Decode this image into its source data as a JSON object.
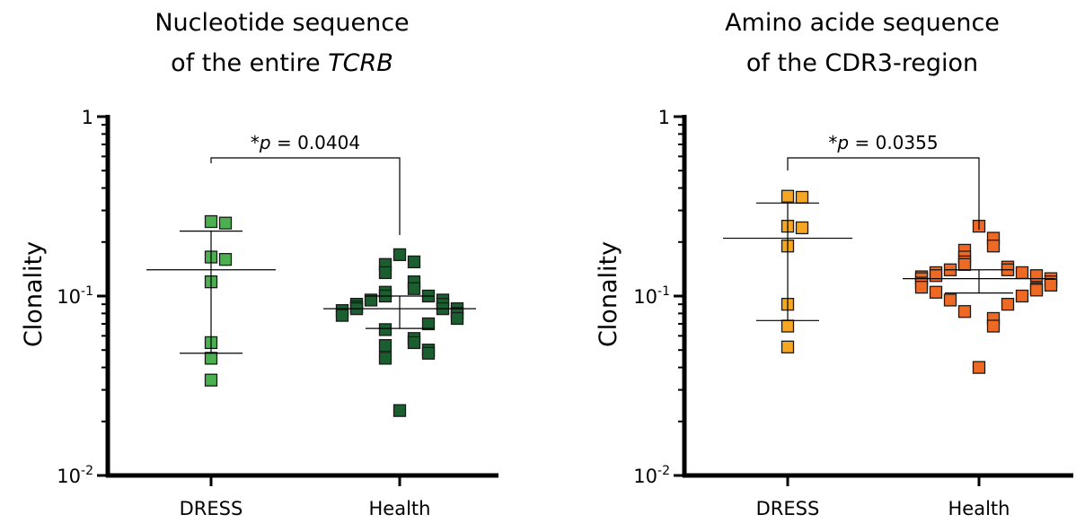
{
  "chart_data": [
    {
      "type": "scatter",
      "title_line1": "Nucleotide sequence",
      "title_line2_prefix": "of the entire ",
      "title_line2_italic": "TCRB",
      "xlabel": "",
      "ylabel": "Clonality",
      "yscale": "log",
      "ylim": [
        0.01,
        1
      ],
      "yticks": [
        {
          "value": 1,
          "base": "1",
          "exp": ""
        },
        {
          "value": 0.1,
          "base": "10",
          "exp": "-1"
        },
        {
          "value": 0.01,
          "base": "10",
          "exp": "-2"
        }
      ],
      "categories": [
        "DRESS",
        "Health"
      ],
      "colors": {
        "DRESS": "#4caf50",
        "Health": "#1b5e30"
      },
      "annotation": {
        "star": "*",
        "p": "p",
        "text": " = 0.0404"
      },
      "series": [
        {
          "category": "DRESS",
          "values": [
            0.26,
            0.255,
            0.165,
            0.16,
            0.12,
            0.055,
            0.045,
            0.034
          ],
          "mean": 0.14,
          "err_high": 0.23,
          "err_low": 0.048
        },
        {
          "category": "Health",
          "values": [
            0.17,
            0.155,
            0.15,
            0.135,
            0.12,
            0.11,
            0.105,
            0.1,
            0.1,
            0.095,
            0.095,
            0.09,
            0.09,
            0.087,
            0.085,
            0.085,
            0.085,
            0.083,
            0.08,
            0.078,
            0.075,
            0.07,
            0.065,
            0.058,
            0.055,
            0.053,
            0.05,
            0.048,
            0.045,
            0.023
          ],
          "mean": 0.085,
          "err_high": 0.1,
          "err_low": 0.066
        }
      ]
    },
    {
      "type": "scatter",
      "title_line1": "Amino acide sequence",
      "title_line2_prefix": "of the CDR3-region",
      "title_line2_italic": "",
      "xlabel": "",
      "ylabel": "Clonality",
      "yscale": "log",
      "ylim": [
        0.01,
        1
      ],
      "yticks": [
        {
          "value": 1,
          "base": "1",
          "exp": ""
        },
        {
          "value": 0.1,
          "base": "10",
          "exp": "-1"
        },
        {
          "value": 0.01,
          "base": "10",
          "exp": "-2"
        }
      ],
      "categories": [
        "DRESS",
        "Health"
      ],
      "colors": {
        "DRESS": "#f5a623",
        "Health": "#ee6a24"
      },
      "annotation": {
        "star": "*",
        "p": "p",
        "text": " = 0.0355"
      },
      "series": [
        {
          "category": "DRESS",
          "values": [
            0.36,
            0.355,
            0.245,
            0.24,
            0.19,
            0.09,
            0.068,
            0.052
          ],
          "mean": 0.21,
          "err_high": 0.33,
          "err_low": 0.073
        },
        {
          "category": "Health",
          "values": [
            0.245,
            0.21,
            0.19,
            0.18,
            0.165,
            0.155,
            0.15,
            0.145,
            0.14,
            0.14,
            0.135,
            0.135,
            0.13,
            0.13,
            0.128,
            0.125,
            0.125,
            0.12,
            0.118,
            0.115,
            0.112,
            0.11,
            0.108,
            0.105,
            0.1,
            0.095,
            0.09,
            0.082,
            0.075,
            0.068,
            0.04
          ],
          "mean": 0.125,
          "err_high": 0.14,
          "err_low": 0.104
        }
      ]
    }
  ]
}
